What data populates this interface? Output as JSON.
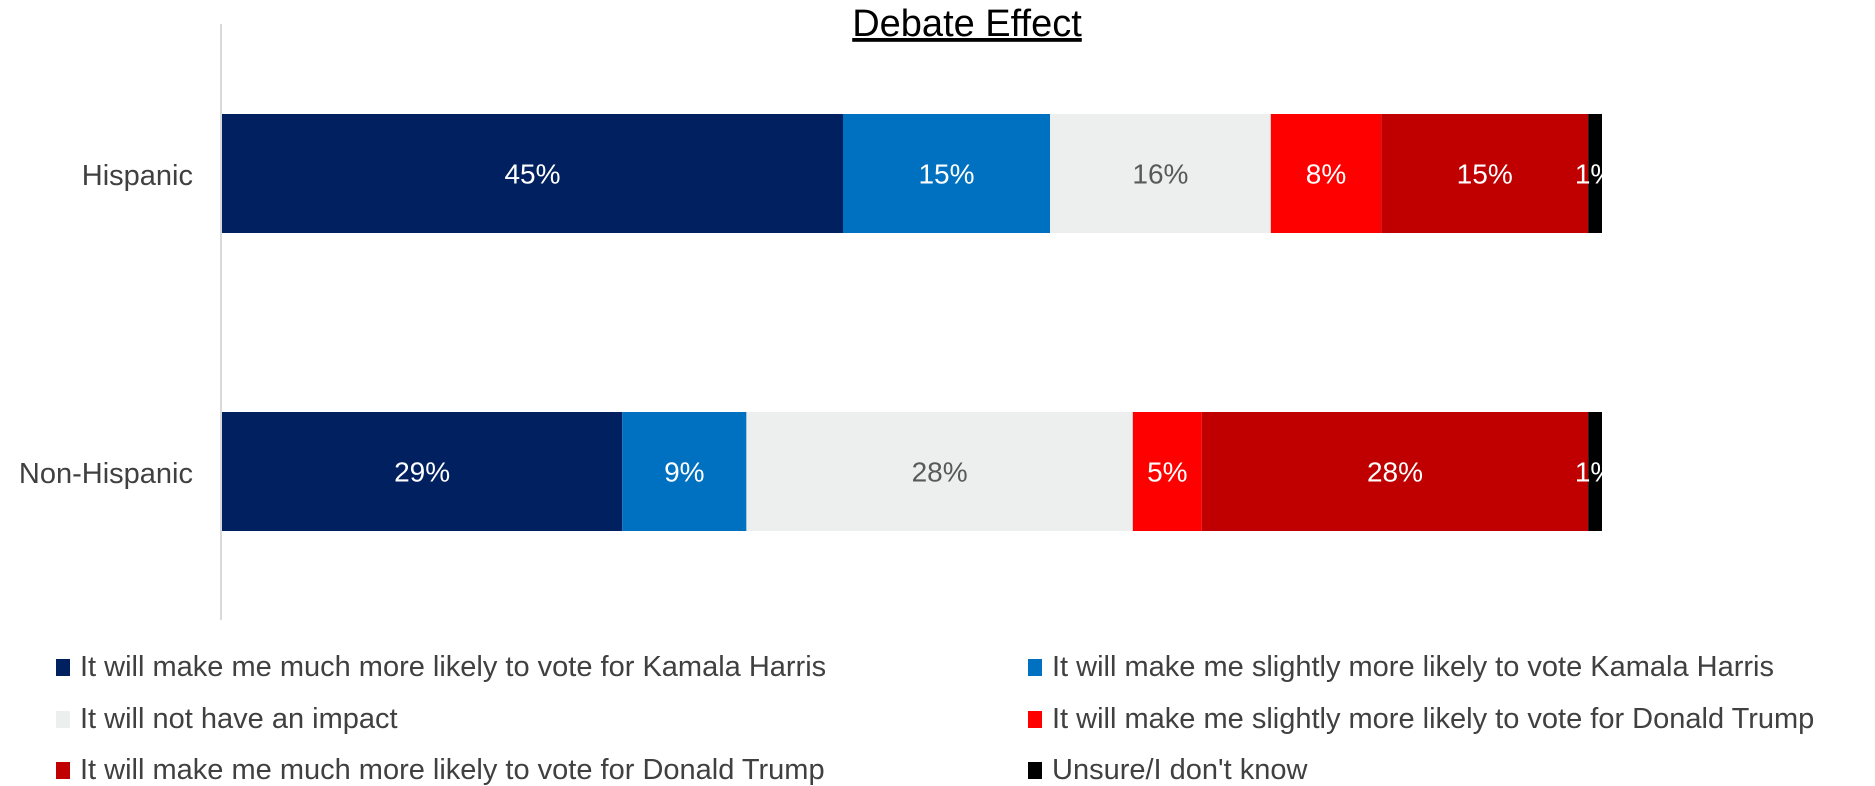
{
  "chart_data": {
    "type": "bar",
    "orientation": "horizontal",
    "stacked": true,
    "title": "Debate Effect",
    "categories": [
      "Hispanic",
      "Non-Hispanic"
    ],
    "series": [
      {
        "name": "It will make me much more likely to vote for Kamala Harris",
        "color": "#002060",
        "label_color": "#ffffff",
        "values": [
          45,
          29
        ],
        "labels": [
          "45%",
          "29%"
        ]
      },
      {
        "name": "It will make me slightly more likely to vote Kamala Harris",
        "color": "#0070C0",
        "label_color": "#ffffff",
        "values": [
          15,
          9
        ],
        "labels": [
          "15%",
          "9%"
        ]
      },
      {
        "name": "It will not have an impact",
        "color": "#EDEFEE",
        "label_color": "#595959",
        "values": [
          16,
          28
        ],
        "labels": [
          "16%",
          "28%"
        ]
      },
      {
        "name": "It will make me slightly more likely to vote for Donald Trump",
        "color": "#FF0000",
        "label_color": "#ffffff",
        "values": [
          8,
          5
        ],
        "labels": [
          "8%",
          "5%"
        ]
      },
      {
        "name": "It will make me much more likely to vote for Donald Trump",
        "color": "#C00000",
        "label_color": "#ffffff",
        "values": [
          15,
          28
        ],
        "labels": [
          "15%",
          "28%"
        ]
      },
      {
        "name": "Unsure/I don't know",
        "color": "#000000",
        "label_color": "#ffffff",
        "values": [
          1,
          1
        ],
        "labels": [
          "1%",
          "1%"
        ]
      }
    ],
    "legend_position": "bottom",
    "grid": false
  }
}
